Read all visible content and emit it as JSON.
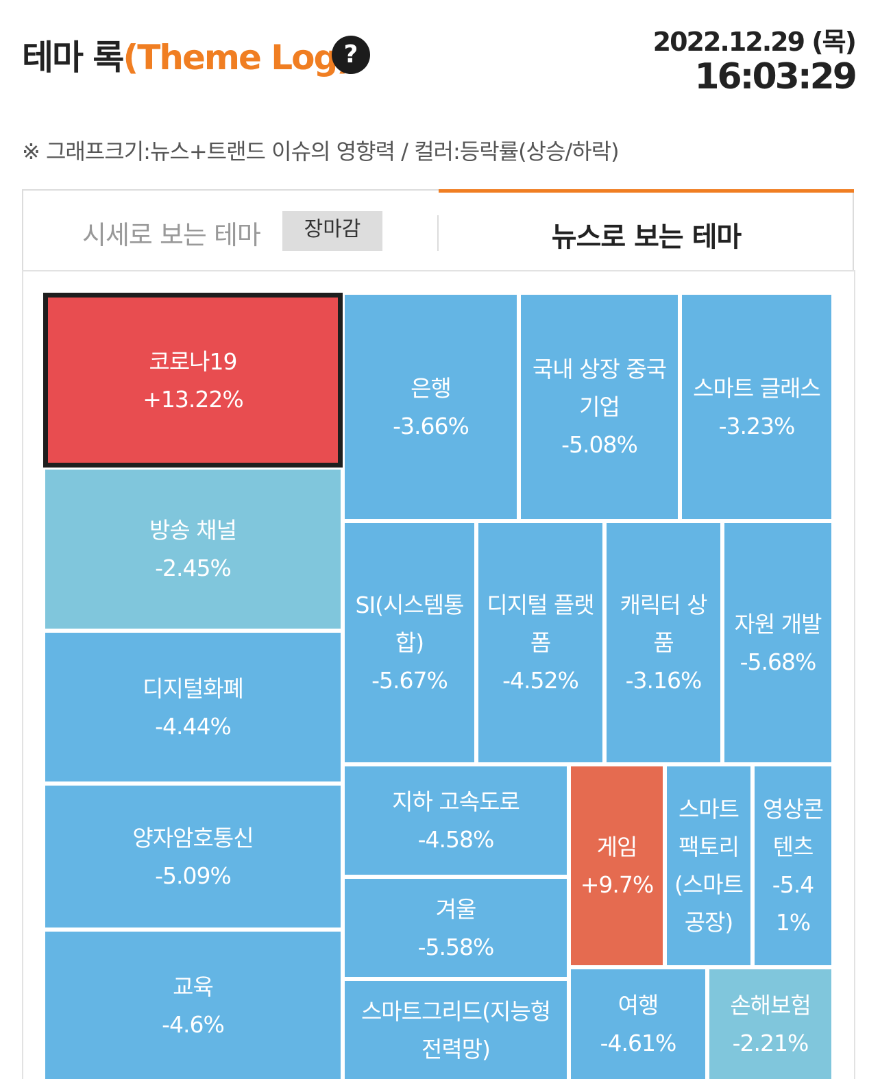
{
  "header": {
    "title": "테마 록",
    "subtitle": "(Theme Log)",
    "help_icon": "?",
    "date": "2022.12.29 (목)",
    "time": "16:03:29"
  },
  "note": "※ 그래프크기:뉴스+트랜드 이슈의 영향력 / 컬러:등락률(상승/하락)",
  "tabs": {
    "price_theme": "시세로 보는 테마",
    "market_close_badge": "장마감",
    "news_theme": "뉴스로 보는 테마"
  },
  "colors": {
    "accent": "#f07e22",
    "rise_strong": "#e84d50",
    "rise": "#e56b50",
    "fall": "#64b5e4",
    "fall_light": "#80c6dc"
  },
  "themes": [
    {
      "name": "코로나19",
      "change": "+13.22%"
    },
    {
      "name": "은행",
      "change": "-3.66%"
    },
    {
      "name": "국내 상장 중국기업",
      "change": "-5.08%"
    },
    {
      "name": "스마트 글래스",
      "change": "-3.23%"
    },
    {
      "name": "방송 채널",
      "change": "-2.45%"
    },
    {
      "name": "SI(시스템통합)",
      "change": "-5.67%"
    },
    {
      "name": "디지털 플랫폼",
      "change": "-4.52%"
    },
    {
      "name": "캐릭터 상품",
      "change": "-3.16%"
    },
    {
      "name": "자원 개발",
      "change": "-5.68%"
    },
    {
      "name": "디지털화폐",
      "change": "-4.44%"
    },
    {
      "name": "지하 고속도로",
      "change": "-4.58%"
    },
    {
      "name": "게임",
      "change": "+9.7%"
    },
    {
      "name": "스마트팩토리(스마트공장)",
      "change": ""
    },
    {
      "name": "영상콘텐츠",
      "change": "-5.41%"
    },
    {
      "name": "양자암호통신",
      "change": "-5.09%"
    },
    {
      "name": "겨울",
      "change": "-5.58%"
    },
    {
      "name": "교육",
      "change": "-4.6%"
    },
    {
      "name": "스마트그리드(지능형전력망)",
      "change": ""
    },
    {
      "name": "여행",
      "change": "-4.61%"
    },
    {
      "name": "손해보험",
      "change": "-2.21%"
    }
  ]
}
